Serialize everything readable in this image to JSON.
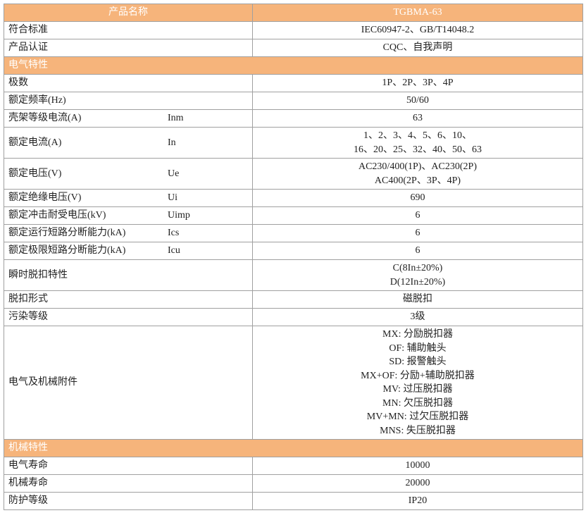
{
  "header": {
    "label": "产品名称",
    "value": "TGBMA-63"
  },
  "general": [
    {
      "label": "符合标准",
      "value": [
        "IEC60947-2、GB/T14048.2"
      ]
    },
    {
      "label": "产品认证",
      "value": [
        "CQC、自我声明"
      ]
    }
  ],
  "sections": [
    {
      "title": "电气特性",
      "rows": [
        {
          "label": "极数",
          "value": [
            "1P、2P、3P、4P"
          ]
        },
        {
          "label": "额定频率(Hz)",
          "value": [
            "50/60"
          ]
        },
        {
          "label": "壳架等级电流(A)",
          "symbol": "Inm",
          "value": [
            "63"
          ]
        },
        {
          "label": "额定电流(A)",
          "symbol": "In",
          "value": [
            "1、2、3、4、5、6、10、",
            "16、20、25、32、40、50、63"
          ]
        },
        {
          "label": "额定电压(V)",
          "symbol": "Ue",
          "value": [
            "AC230/400(1P)、AC230(2P)",
            "AC400(2P、3P、4P)"
          ]
        },
        {
          "label": "额定绝缘电压(V)",
          "symbol": "Ui",
          "value": [
            "690"
          ]
        },
        {
          "label": "额定冲击耐受电压(kV)",
          "symbol": "Uimp",
          "value": [
            "6"
          ]
        },
        {
          "label": "额定运行短路分断能力(kA)",
          "symbol": "Ics",
          "value": [
            "6"
          ]
        },
        {
          "label": "额定极限短路分断能力(kA)",
          "symbol": "Icu",
          "value": [
            "6"
          ]
        },
        {
          "label": "瞬时脱扣特性",
          "value": [
            "C(8In±20%)",
            "D(12In±20%)"
          ]
        },
        {
          "label": "脱扣形式",
          "value": [
            "磁脱扣"
          ]
        },
        {
          "label": "污染等级",
          "value": [
            "3级"
          ]
        },
        {
          "label": "电气及机械附件",
          "value": [
            "MX: 分励脱扣器",
            "OF: 辅助触头",
            "SD: 报警触头",
            "MX+OF: 分励+辅助脱扣器",
            "MV: 过压脱扣器",
            "MN: 欠压脱扣器",
            "MV+MN: 过欠压脱扣器",
            "MNS: 失压脱扣器"
          ]
        }
      ]
    },
    {
      "title": "机械特性",
      "rows": [
        {
          "label": "电气寿命",
          "value": [
            "10000"
          ]
        },
        {
          "label": "机械寿命",
          "value": [
            "20000"
          ]
        },
        {
          "label": "防护等级",
          "value": [
            "IP20"
          ]
        }
      ]
    }
  ]
}
